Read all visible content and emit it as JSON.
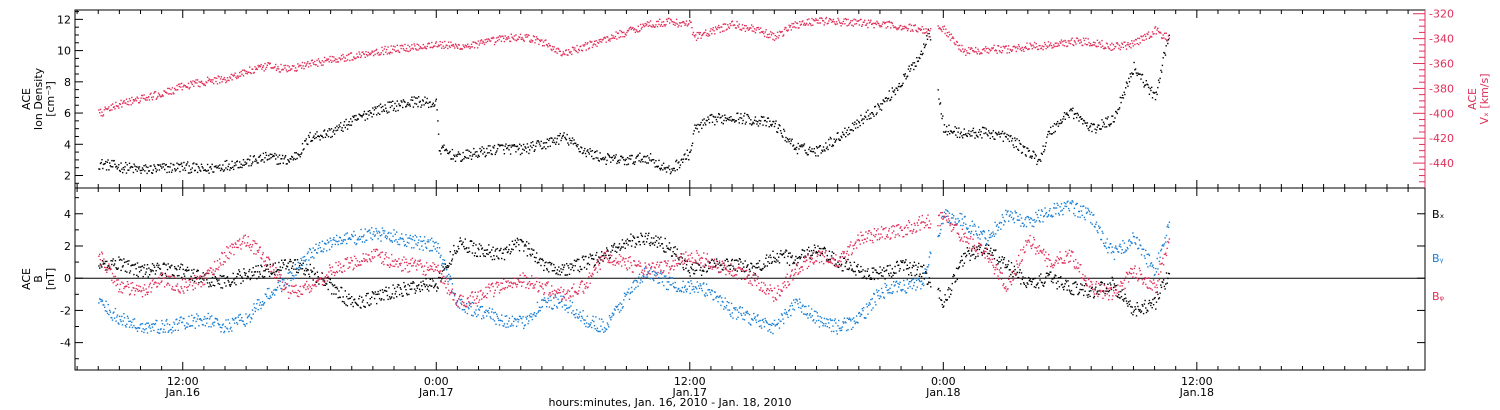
{
  "chart_data": [
    {
      "type": "scatter",
      "panel": "top",
      "ylabel_left": [
        "ACE",
        "Ion Density",
        "[cm⁻³]"
      ],
      "ylabel_right": [
        "ACE",
        "Vₓ [km/s]"
      ],
      "left_axis": {
        "ylim": [
          1.2,
          12.6
        ],
        "ticks": [
          2,
          4,
          6,
          8,
          10,
          12
        ],
        "color": "#000000"
      },
      "right_axis": {
        "ylim": [
          -460,
          -317
        ],
        "ticks": [
          -320,
          -340,
          -360,
          -380,
          -400,
          -420,
          -440
        ],
        "color": "#e0305a"
      },
      "series": [
        {
          "label": "ACE Ion Density",
          "axis": "left",
          "color": "#000000",
          "x": [
            8.0,
            9.0,
            10.0,
            11.0,
            12.0,
            13.0,
            14.0,
            15.0,
            16.0,
            17.0,
            17.5,
            18.0,
            19.0,
            20.0,
            21.0,
            22.0,
            23.0,
            24.0,
            24.1,
            25.0,
            26.0,
            27.0,
            28.0,
            29.0,
            30.0,
            31.0,
            32.0,
            33.0,
            34.0,
            35.0,
            36.0,
            36.2,
            37.0,
            38.0,
            39.0,
            40.0,
            41.0,
            42.0,
            43.0,
            44.0,
            45.0,
            46.0,
            47.0,
            47.3,
            48.0,
            49.0,
            50.0,
            51.0,
            52.0,
            52.5,
            53.0,
            54.0,
            55.0,
            56.0,
            57.0,
            57.5,
            58.0,
            58.7
          ],
          "y": [
            2.8,
            2.6,
            2.4,
            2.5,
            2.6,
            2.4,
            2.7,
            2.9,
            3.2,
            3.0,
            3.5,
            4.5,
            4.8,
            5.5,
            6.2,
            6.5,
            6.8,
            6.6,
            3.8,
            3.2,
            3.5,
            3.8,
            3.7,
            4.0,
            4.5,
            3.6,
            3.1,
            3.0,
            3.2,
            2.3,
            3.5,
            5.0,
            5.6,
            5.8,
            5.6,
            5.3,
            3.8,
            3.6,
            4.5,
            5.5,
            6.5,
            8.0,
            10.0,
            11.5,
            5.0,
            4.7,
            4.8,
            4.5,
            3.5,
            3.0,
            4.8,
            6.2,
            5.0,
            5.6,
            9.0,
            8.0,
            7.0,
            11.5
          ]
        },
        {
          "label": "ACE Vx",
          "axis": "right",
          "color": "#e0305a",
          "x": [
            8.0,
            9.0,
            10.0,
            11.0,
            12.0,
            13.0,
            14.0,
            15.0,
            16.0,
            17.0,
            18.0,
            19.0,
            20.0,
            21.0,
            22.0,
            23.0,
            24.0,
            25.0,
            26.0,
            27.0,
            28.0,
            29.0,
            30.0,
            31.0,
            32.0,
            33.0,
            34.0,
            35.0,
            36.0,
            36.2,
            37.0,
            38.0,
            39.0,
            40.0,
            41.0,
            42.0,
            43.0,
            44.0,
            45.0,
            46.0,
            47.0,
            47.3,
            47.8,
            48.0,
            49.0,
            50.0,
            51.0,
            52.0,
            53.0,
            54.0,
            55.0,
            56.0,
            57.0,
            58.0,
            58.7
          ],
          "y": [
            -400,
            -392,
            -388,
            -384,
            -378,
            -374,
            -372,
            -366,
            -362,
            -364,
            -360,
            -356,
            -354,
            -350,
            -348,
            -346,
            -344,
            -346,
            -344,
            -340,
            -338,
            -342,
            -352,
            -346,
            -340,
            -334,
            -328,
            -326,
            -328,
            -338,
            -334,
            -328,
            -332,
            -338,
            -328,
            -325,
            -326,
            -327,
            -328,
            -330,
            -332,
            -335,
            -330,
            -332,
            -350,
            -348,
            -348,
            -346,
            -345,
            -342,
            -342,
            -346,
            -344,
            -333,
            -340
          ]
        }
      ]
    },
    {
      "type": "scatter",
      "panel": "bottom",
      "ylabel_left": [
        "ACE",
        "B",
        "[nT]"
      ],
      "ylim": [
        -5.7,
        5.6
      ],
      "ticks": [
        -4,
        -2,
        0,
        2,
        4
      ],
      "zero_line": true,
      "legend_position": "right",
      "series": [
        {
          "name": "Bₓ",
          "color": "#000000",
          "x": [
            8.0,
            9.0,
            10.0,
            11.0,
            12.0,
            13.0,
            14.0,
            15.0,
            16.0,
            17.0,
            18.0,
            19.0,
            20.0,
            21.0,
            22.0,
            23.0,
            24.0,
            25.0,
            26.0,
            27.0,
            28.0,
            29.0,
            30.0,
            31.0,
            32.0,
            33.0,
            34.0,
            35.0,
            36.0,
            37.0,
            38.0,
            39.0,
            40.0,
            41.0,
            42.0,
            43.0,
            44.0,
            45.0,
            46.0,
            47.0,
            48.0,
            49.0,
            50.0,
            51.0,
            52.0,
            53.0,
            54.0,
            55.0,
            56.0,
            57.0,
            58.0,
            58.7
          ],
          "y": [
            0.8,
            1.0,
            0.5,
            0.6,
            0.5,
            0.0,
            -0.2,
            0.3,
            0.5,
            1.0,
            0.5,
            -0.5,
            -1.5,
            -1.2,
            -0.8,
            -0.5,
            -0.3,
            2.2,
            1.8,
            1.5,
            2.2,
            1.0,
            0.5,
            1.0,
            1.5,
            2.3,
            2.5,
            2.0,
            0.5,
            0.8,
            1.0,
            0.5,
            1.5,
            1.2,
            1.8,
            1.0,
            0.5,
            0.3,
            0.8,
            0.5,
            -1.5,
            1.5,
            1.8,
            0.8,
            -0.3,
            0.0,
            -0.5,
            -0.8,
            -0.3,
            -2.0,
            -1.5,
            0.5
          ]
        },
        {
          "name": "Bᵧ",
          "color": "#1a7fd4",
          "x": [
            8.0,
            9.0,
            10.0,
            11.0,
            12.0,
            13.0,
            14.0,
            15.0,
            16.0,
            17.0,
            18.0,
            19.0,
            20.0,
            21.0,
            22.0,
            23.0,
            24.0,
            25.0,
            26.0,
            27.0,
            28.0,
            29.0,
            30.0,
            31.0,
            32.0,
            33.0,
            34.0,
            35.0,
            36.0,
            37.0,
            38.0,
            39.0,
            40.0,
            41.0,
            42.0,
            43.0,
            44.0,
            45.0,
            46.0,
            47.0,
            48.0,
            49.0,
            50.0,
            51.0,
            52.0,
            53.0,
            54.0,
            55.0,
            56.0,
            57.0,
            58.0,
            58.7
          ],
          "y": [
            -1.5,
            -2.5,
            -3.0,
            -3.0,
            -2.8,
            -2.5,
            -3.0,
            -2.5,
            -1.0,
            0.0,
            1.5,
            2.3,
            2.5,
            2.8,
            2.6,
            2.3,
            2.0,
            -1.5,
            -2.0,
            -2.5,
            -2.8,
            -1.5,
            -1.5,
            -2.5,
            -3.0,
            -1.0,
            0.5,
            -0.3,
            -0.5,
            -0.8,
            -2.0,
            -2.5,
            -3.0,
            -1.5,
            -2.5,
            -3.0,
            -2.5,
            -0.8,
            -0.5,
            -0.2,
            4.0,
            3.5,
            2.5,
            4.0,
            3.5,
            4.2,
            4.5,
            3.8,
            1.5,
            2.5,
            0.5,
            3.5
          ]
        },
        {
          "name": "Bᵩ",
          "color": "#e0305a",
          "x": [
            8.0,
            9.0,
            10.0,
            11.0,
            12.0,
            13.0,
            14.0,
            15.0,
            16.0,
            17.0,
            18.0,
            19.0,
            20.0,
            21.0,
            22.0,
            23.0,
            24.0,
            25.0,
            26.0,
            27.0,
            28.0,
            29.0,
            30.0,
            31.0,
            32.0,
            33.0,
            34.0,
            35.0,
            36.0,
            37.0,
            38.0,
            39.0,
            40.0,
            41.0,
            42.0,
            43.0,
            44.0,
            45.0,
            46.0,
            47.0,
            48.0,
            49.0,
            50.0,
            51.0,
            52.0,
            53.0,
            54.0,
            55.0,
            56.0,
            57.0,
            58.0,
            58.7
          ],
          "y": [
            1.5,
            -0.5,
            -0.8,
            0.0,
            -0.5,
            0.0,
            1.5,
            2.5,
            1.0,
            -0.8,
            -0.5,
            0.5,
            1.0,
            1.5,
            1.0,
            0.8,
            0.5,
            -1.5,
            -1.0,
            -0.5,
            0.0,
            -0.5,
            -1.0,
            -0.5,
            1.5,
            1.0,
            0.5,
            0.8,
            1.5,
            1.0,
            0.5,
            0.0,
            -1.0,
            0.5,
            1.5,
            1.0,
            2.5,
            2.8,
            3.0,
            3.5,
            3.8,
            2.5,
            1.5,
            -0.5,
            2.5,
            1.0,
            1.5,
            -0.5,
            -1.0,
            0.5,
            -0.5,
            2.5
          ]
        }
      ]
    }
  ],
  "x_axis": {
    "ticks": [
      {
        "hours": 12,
        "time": "12:00",
        "date": "Jan.16"
      },
      {
        "hours": 24,
        "time": "0:00",
        "date": "Jan.17"
      },
      {
        "hours": 36,
        "time": "12:00",
        "date": "Jan.17"
      },
      {
        "hours": 48,
        "time": "0:00",
        "date": "Jan.18"
      },
      {
        "hours": 60,
        "time": "12:00",
        "date": "Jan.18"
      }
    ],
    "range_hours": [
      6.9,
      70.8
    ],
    "xlabel": "hours:minutes, Jan. 16, 2010 - Jan. 18, 2010"
  },
  "colors": {
    "black": "#000000",
    "pink": "#e0305a",
    "blue": "#1a7fd4"
  }
}
